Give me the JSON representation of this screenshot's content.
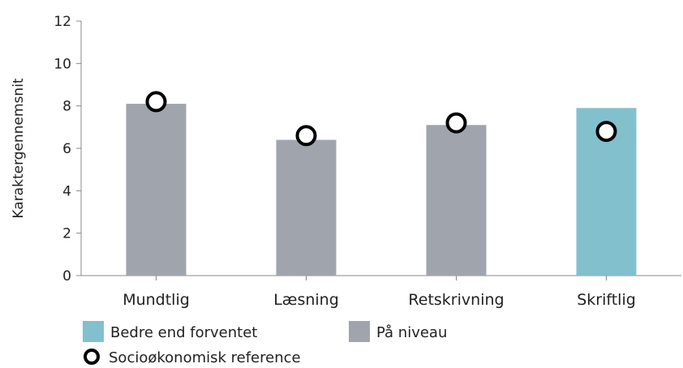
{
  "chart_data": {
    "type": "bar",
    "categories": [
      "Mundtlig",
      "Læsning",
      "Retskrivning",
      "Skriftlig"
    ],
    "series": [
      {
        "values": [
          8.1,
          6.4,
          7.1,
          7.9
        ],
        "status": [
          "På niveau",
          "På niveau",
          "På niveau",
          "Bedre end forventet"
        ]
      },
      {
        "name": "Socioøkonomisk reference",
        "values": [
          8.2,
          6.6,
          7.2,
          6.8
        ]
      }
    ],
    "ylabel": "Karaktergennemsnit",
    "xlabel": "",
    "ylim": [
      0,
      12
    ],
    "yticks": [
      0,
      2,
      4,
      6,
      8,
      10,
      12
    ],
    "legend": [
      {
        "label": "Bedre end forventet",
        "color": "#82c0ce",
        "kind": "box"
      },
      {
        "label": "På niveau",
        "color": "#a0a5ad",
        "kind": "box"
      },
      {
        "label": "Socioøkonomisk reference",
        "kind": "circle"
      }
    ],
    "legend_position": "bottom-left",
    "grid": false,
    "colors": {
      "Bedre end forventet": "#82c0ce",
      "På niveau": "#a0a5ad",
      "axis": "#888888"
    }
  }
}
